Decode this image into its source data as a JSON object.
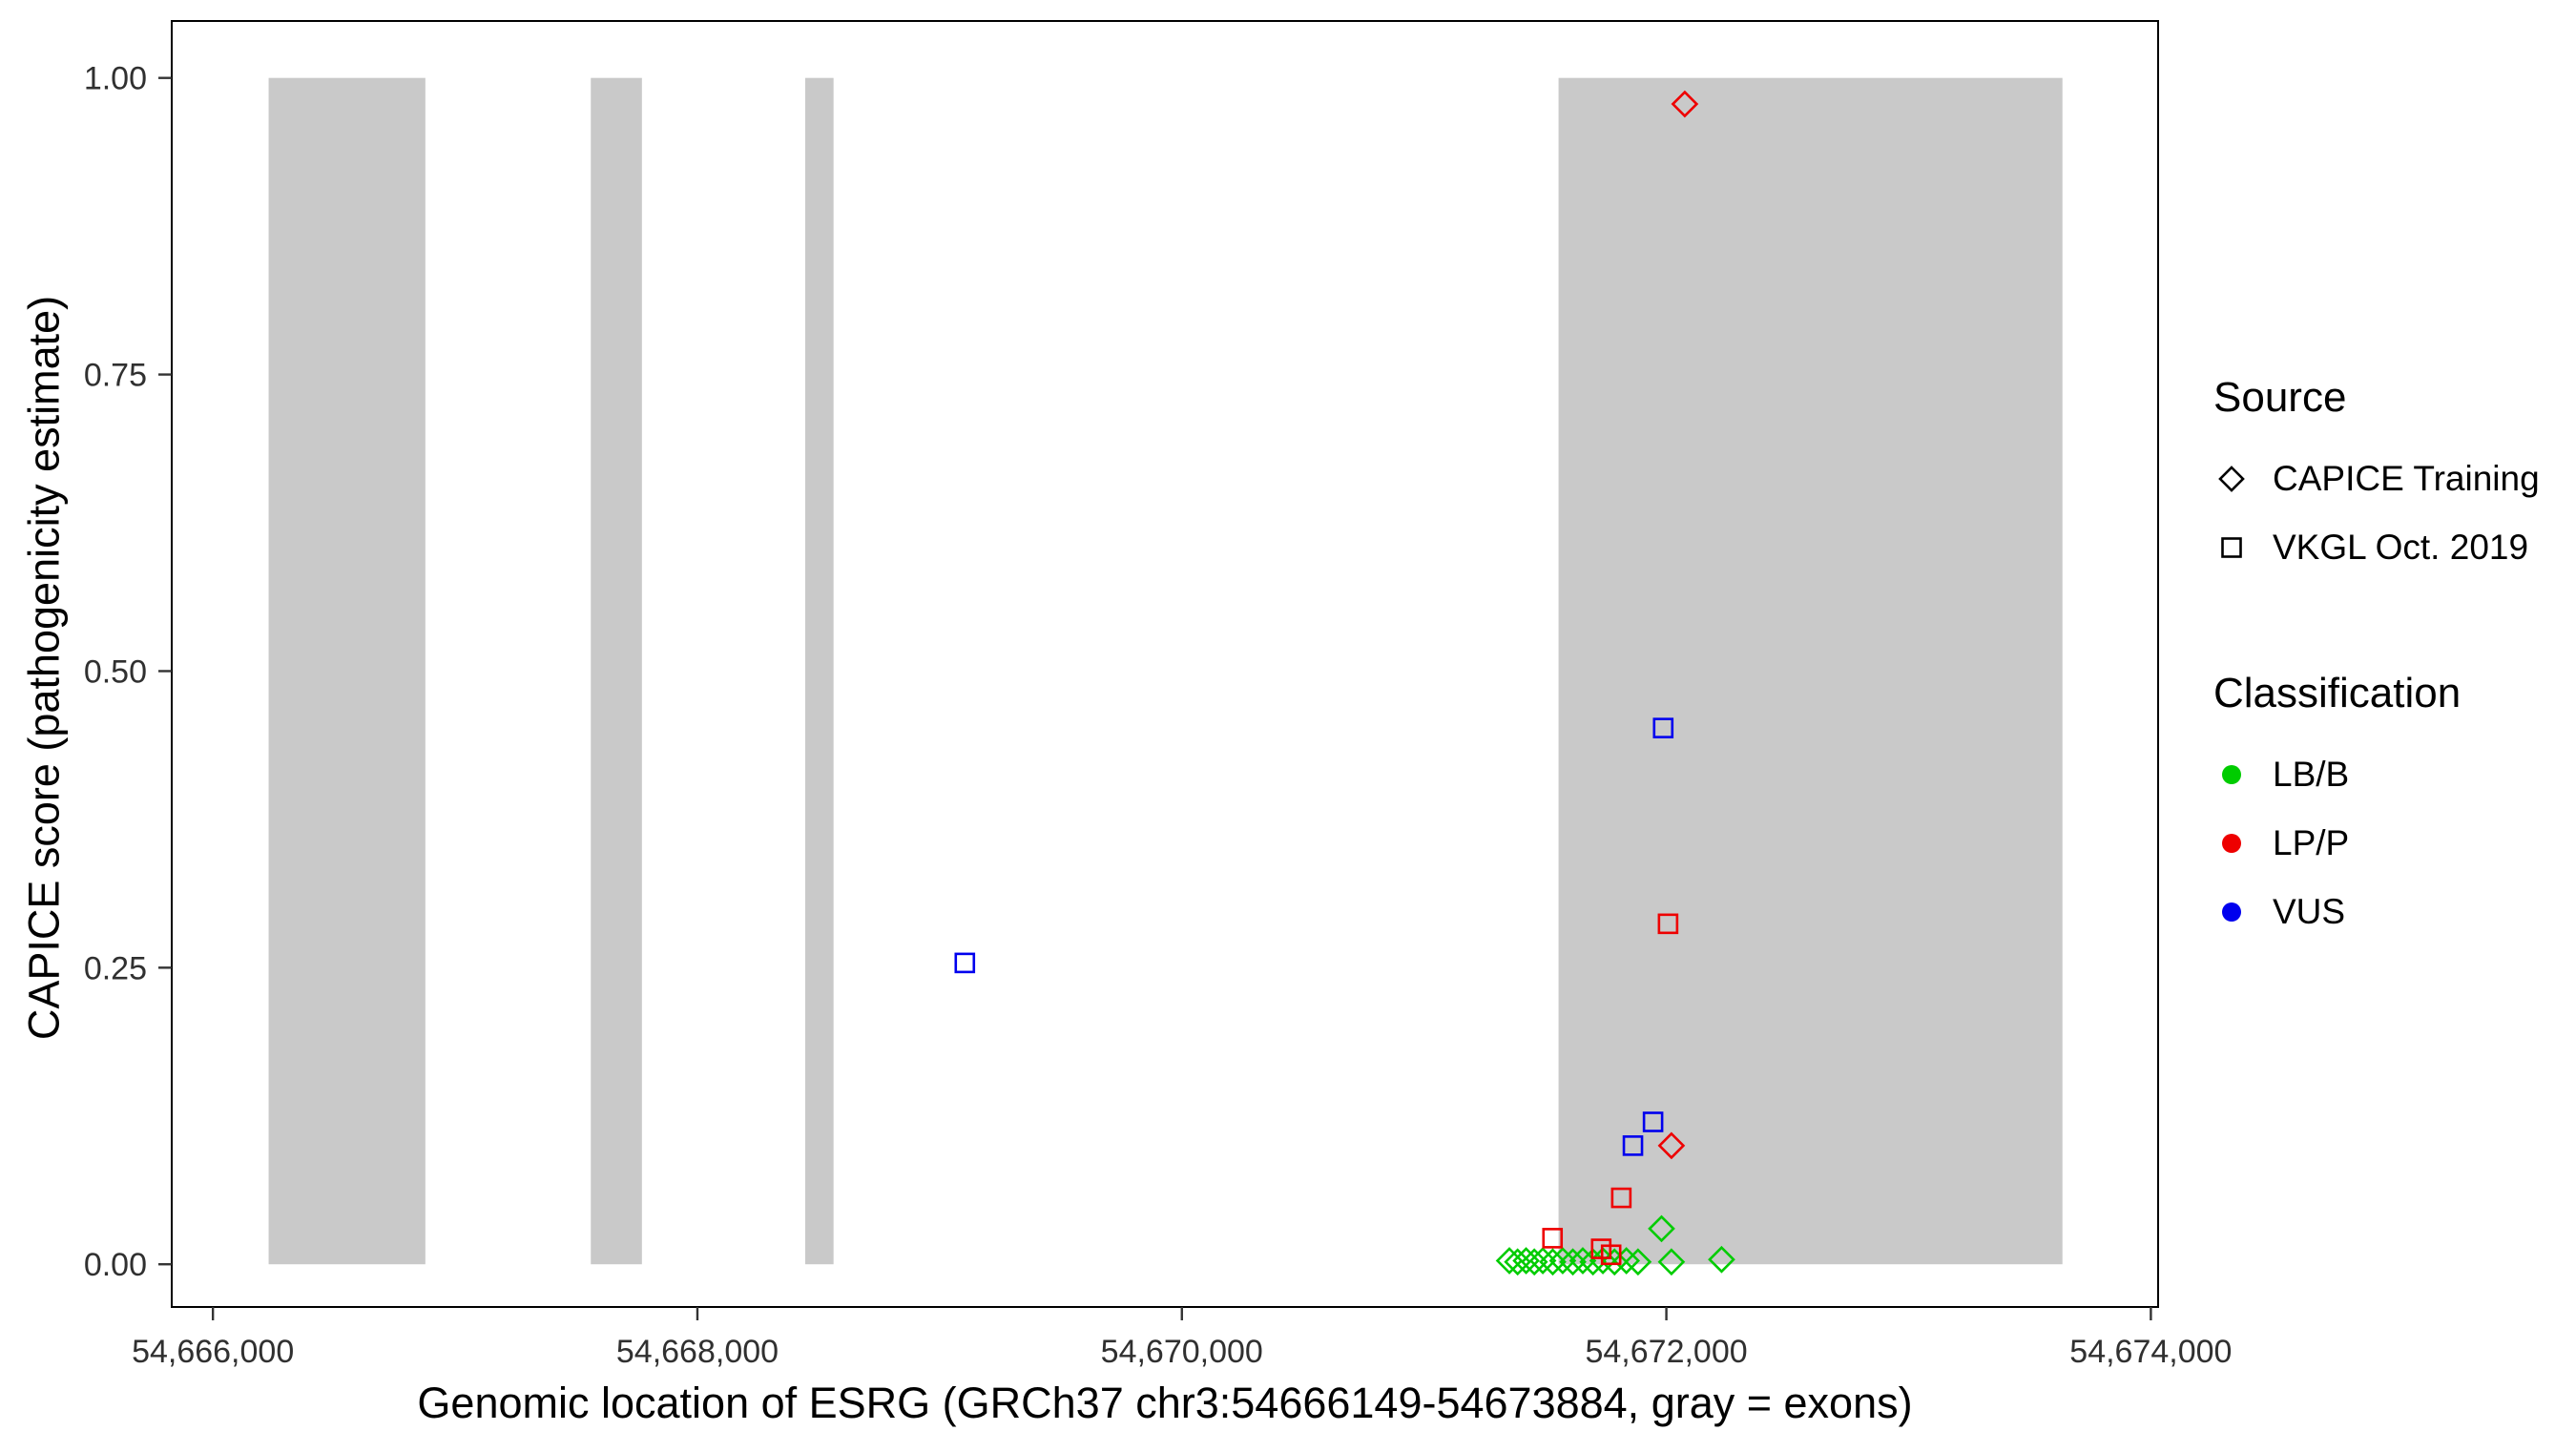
{
  "figure": {
    "background_color": "#FFFFFF"
  },
  "chart_data": {
    "type": "scatter",
    "title": "",
    "xlabel": "Genomic location of ESRG (GRCh37 chr3:54666149-54673884, gray = exons)",
    "ylabel": "CAPICE score (pathogenicity estimate)",
    "xlim": [
      54665830,
      54674030
    ],
    "ylim": [
      -0.036,
      1.048
    ],
    "x_ticks": [
      54666000,
      54668000,
      54670000,
      54672000,
      54674000
    ],
    "x_tick_labels": [
      "54,666,000",
      "54,668,000",
      "54,670,000",
      "54,672,000",
      "54,674,000"
    ],
    "y_ticks": [
      0,
      0.25,
      0.5,
      0.75,
      1
    ],
    "y_tick_labels": [
      "0.00",
      "0.25",
      "0.50",
      "0.75",
      "1.00"
    ],
    "grid": false,
    "legend_position": "right",
    "exon_color": "#C9C9C9",
    "exons": [
      {
        "start": 54666230,
        "end": 54666877
      },
      {
        "start": 54667560,
        "end": 54667771
      },
      {
        "start": 54668445,
        "end": 54668562
      },
      {
        "start": 54671555,
        "end": 54673635
      }
    ],
    "shape_by_source": {
      "CAPICE Training": "diamond",
      "VKGL Oct. 2019": "square"
    },
    "colors_by_classification": {
      "LB/B": "#00CC00",
      "LP/P": "#EE0000",
      "VUS": "#0000EE"
    },
    "points": [
      {
        "x": 54671352,
        "y": 0.003,
        "source": "CAPICE Training",
        "classification": "LB/B"
      },
      {
        "x": 54671386,
        "y": 0.002,
        "source": "CAPICE Training",
        "classification": "LB/B"
      },
      {
        "x": 54671421,
        "y": 0.003,
        "source": "CAPICE Training",
        "classification": "LB/B"
      },
      {
        "x": 54671455,
        "y": 0.002,
        "source": "CAPICE Training",
        "classification": "LB/B"
      },
      {
        "x": 54671490,
        "y": 0.003,
        "source": "CAPICE Training",
        "classification": "LB/B"
      },
      {
        "x": 54671531,
        "y": 0.002,
        "source": "CAPICE Training",
        "classification": "LB/B"
      },
      {
        "x": 54671572,
        "y": 0.003,
        "source": "CAPICE Training",
        "classification": "LB/B"
      },
      {
        "x": 54671614,
        "y": 0.002,
        "source": "CAPICE Training",
        "classification": "LB/B"
      },
      {
        "x": 54671655,
        "y": 0.003,
        "source": "CAPICE Training",
        "classification": "LB/B"
      },
      {
        "x": 54671697,
        "y": 0.002,
        "source": "CAPICE Training",
        "classification": "LB/B"
      },
      {
        "x": 54671738,
        "y": 0.003,
        "source": "CAPICE Training",
        "classification": "LB/B"
      },
      {
        "x": 54671786,
        "y": 0.002,
        "source": "CAPICE Training",
        "classification": "LB/B"
      },
      {
        "x": 54671835,
        "y": 0.003,
        "source": "CAPICE Training",
        "classification": "LB/B"
      },
      {
        "x": 54671883,
        "y": 0.002,
        "source": "CAPICE Training",
        "classification": "LB/B"
      },
      {
        "x": 54671980,
        "y": 0.03,
        "source": "CAPICE Training",
        "classification": "LB/B"
      },
      {
        "x": 54672021,
        "y": 0.002,
        "source": "CAPICE Training",
        "classification": "LB/B"
      },
      {
        "x": 54672228,
        "y": 0.004,
        "source": "CAPICE Training",
        "classification": "LB/B"
      },
      {
        "x": 54671530,
        "y": 0.022,
        "source": "VKGL Oct. 2019",
        "classification": "LP/P"
      },
      {
        "x": 54671731,
        "y": 0.013,
        "source": "VKGL Oct. 2019",
        "classification": "LP/P"
      },
      {
        "x": 54671772,
        "y": 0.008,
        "source": "VKGL Oct. 2019",
        "classification": "LP/P"
      },
      {
        "x": 54671814,
        "y": 0.056,
        "source": "VKGL Oct. 2019",
        "classification": "LP/P"
      },
      {
        "x": 54672007,
        "y": 0.287,
        "source": "VKGL Oct. 2019",
        "classification": "LP/P"
      },
      {
        "x": 54672021,
        "y": 0.1,
        "source": "CAPICE Training",
        "classification": "LP/P"
      },
      {
        "x": 54672076,
        "y": 0.978,
        "source": "CAPICE Training",
        "classification": "LP/P"
      },
      {
        "x": 54669104,
        "y": 0.254,
        "source": "VKGL Oct. 2019",
        "classification": "VUS"
      },
      {
        "x": 54671862,
        "y": 0.1,
        "source": "VKGL Oct. 2019",
        "classification": "VUS"
      },
      {
        "x": 54671945,
        "y": 0.12,
        "source": "VKGL Oct. 2019",
        "classification": "VUS"
      },
      {
        "x": 54671987,
        "y": 0.452,
        "source": "VKGL Oct. 2019",
        "classification": "VUS"
      }
    ]
  },
  "legend": {
    "source": {
      "title": "Source",
      "items": [
        {
          "label": "CAPICE Training",
          "shape": "diamond"
        },
        {
          "label": "VKGL Oct. 2019",
          "shape": "square"
        }
      ]
    },
    "classification": {
      "title": "Classification",
      "items": [
        {
          "label": "LB/B",
          "color": "#00CC00"
        },
        {
          "label": "LP/P",
          "color": "#EE0000"
        },
        {
          "label": "VUS",
          "color": "#0000EE"
        }
      ]
    }
  }
}
